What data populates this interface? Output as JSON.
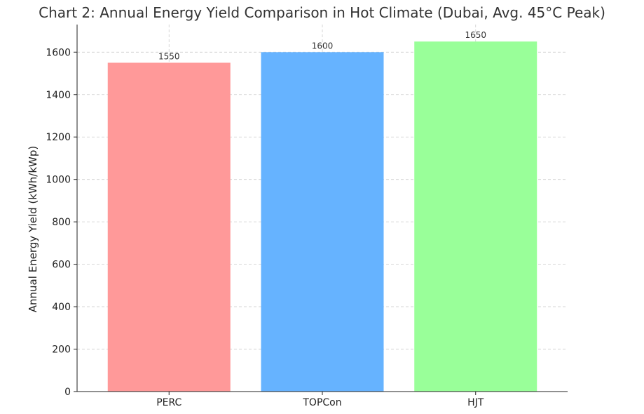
{
  "chart_data": {
    "type": "bar",
    "title": "Chart 2: Annual Energy Yield Comparison in Hot Climate (Dubai, Avg. 45°C Peak)",
    "xlabel": "",
    "ylabel": "Annual Energy Yield (kWh/kWp)",
    "categories": [
      "PERC",
      "TOPCon",
      "HJT"
    ],
    "values": [
      1550,
      1600,
      1650
    ],
    "data_labels": [
      "1550",
      "1600",
      "1650"
    ],
    "colors": [
      "#ff9999",
      "#66b3ff",
      "#99ff99"
    ],
    "ylim": [
      0,
      1730
    ],
    "yticks": [
      0,
      200,
      400,
      600,
      800,
      1000,
      1200,
      1400,
      1600
    ],
    "grid": true,
    "grid_color": "#cccccc",
    "legend": "none"
  }
}
